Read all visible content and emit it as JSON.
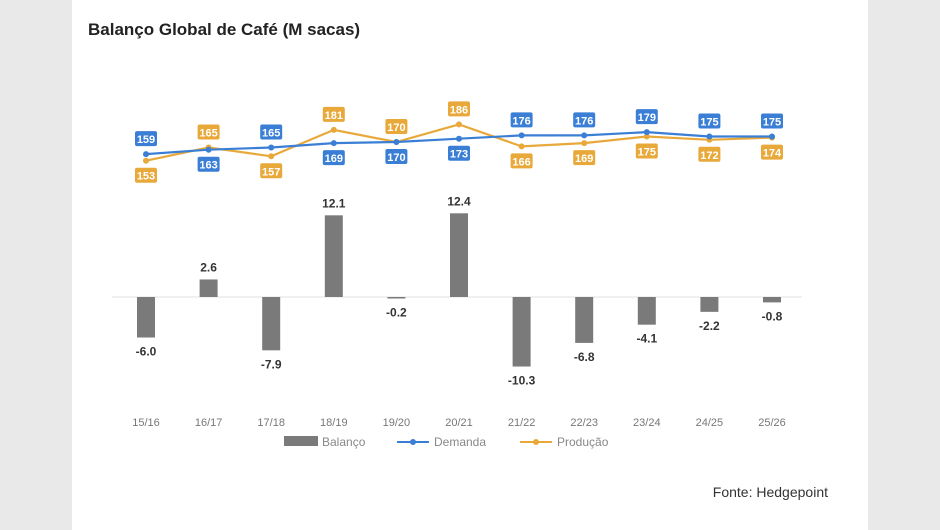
{
  "chart_data": {
    "type": "bar",
    "title": "Balanço Global de Café (M sacas)",
    "source": "Fonte: Hedgepoint",
    "categories": [
      "15/16",
      "16/17",
      "17/18",
      "18/19",
      "19/20",
      "20/21",
      "21/22",
      "22/23",
      "23/24",
      "24/25",
      "25/26"
    ],
    "series": [
      {
        "name": "Balanço",
        "kind": "bar",
        "color": "#7a7a7a",
        "labels": [
          "-6.0",
          "2.6",
          "-7.9",
          "12.1",
          "-0.2",
          "12.4",
          "-10.3",
          "-6.8",
          "-4.1",
          "-2.2",
          "-0.8"
        ],
        "values": [
          -6.0,
          2.6,
          -7.9,
          12.1,
          -0.2,
          12.4,
          -10.3,
          -6.8,
          -4.1,
          -2.2,
          -0.8
        ]
      },
      {
        "name": "Demanda",
        "kind": "line",
        "color": "#3a7fd5",
        "values": [
          159,
          163,
          165,
          169,
          170,
          173,
          176,
          176,
          179,
          175,
          175
        ]
      },
      {
        "name": "Produção",
        "kind": "line",
        "color": "#e8a93a",
        "values": [
          153,
          165,
          157,
          181,
          170,
          186,
          166,
          169,
          175,
          172,
          174
        ]
      }
    ],
    "legend": "bottom",
    "grid": false
  }
}
